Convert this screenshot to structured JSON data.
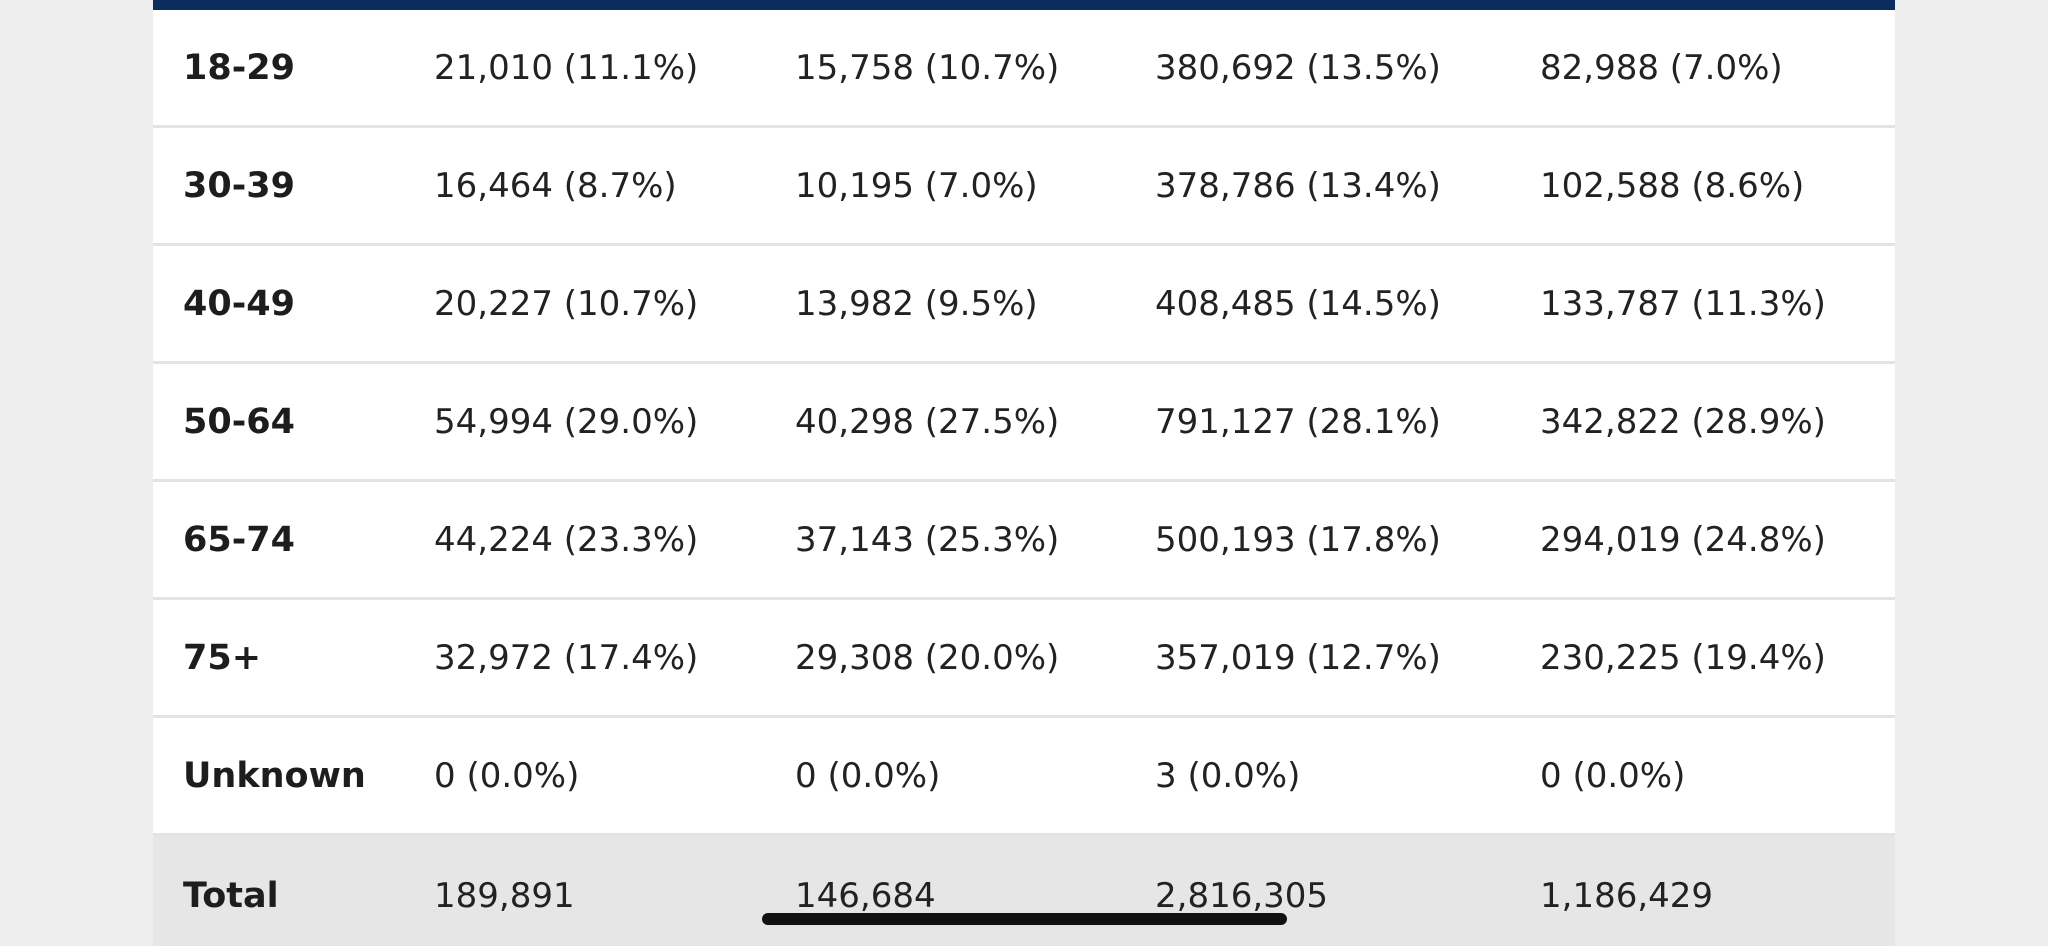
{
  "table": {
    "rows": [
      {
        "label": "18-29",
        "values": [
          "21,010 (11.1%)",
          "15,758 (10.7%)",
          "380,692 (13.5%)",
          "82,988 (7.0%)"
        ]
      },
      {
        "label": "30-39",
        "values": [
          "16,464 (8.7%)",
          "10,195 (7.0%)",
          "378,786 (13.4%)",
          "102,588 (8.6%)"
        ]
      },
      {
        "label": "40-49",
        "values": [
          "20,227 (10.7%)",
          "13,982 (9.5%)",
          "408,485 (14.5%)",
          "133,787 (11.3%)"
        ]
      },
      {
        "label": "50-64",
        "values": [
          "54,994 (29.0%)",
          "40,298 (27.5%)",
          "791,127 (28.1%)",
          "342,822 (28.9%)"
        ]
      },
      {
        "label": "65-74",
        "values": [
          "44,224 (23.3%)",
          "37,143 (25.3%)",
          "500,193 (17.8%)",
          "294,019 (24.8%)"
        ]
      },
      {
        "label": "75+",
        "values": [
          "32,972 (17.4%)",
          "29,308 (20.0%)",
          "357,019 (12.7%)",
          "230,225 (19.4%)"
        ]
      },
      {
        "label": "Unknown",
        "values": [
          "0 (0.0%)",
          "0 (0.0%)",
          "3 (0.0%)",
          "0 (0.0%)"
        ]
      }
    ],
    "total": {
      "label": "Total",
      "values": [
        "189,891",
        "146,684",
        "2,816,305",
        "1,186,429"
      ]
    }
  },
  "colors": {
    "header_bar": "#0b2d5e",
    "total_row_bg": "#e6e6e6",
    "page_bg": "#eeeeee"
  }
}
